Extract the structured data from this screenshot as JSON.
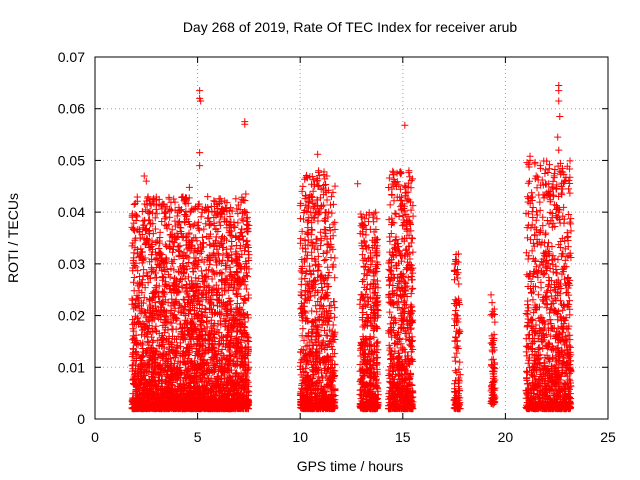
{
  "chart_data": {
    "type": "scatter",
    "title": "Day 268 of 2019, Rate Of TEC Index for receiver arub",
    "xlabel": "GPS time / hours",
    "ylabel": "ROTI / TECUs",
    "xlim": [
      0,
      25
    ],
    "ylim": [
      0,
      0.07
    ],
    "xticks": [
      0,
      5,
      10,
      15,
      20,
      25
    ],
    "xtick_labels": [
      "0",
      "5",
      "10",
      "15",
      "20",
      "25"
    ],
    "yticks": [
      0,
      0.01,
      0.02,
      0.03,
      0.04,
      0.05,
      0.06,
      0.07
    ],
    "ytick_labels": [
      "0",
      "0.01",
      "0.02",
      "0.03",
      "0.04",
      "0.05",
      "0.06",
      "0.07"
    ],
    "grid": true,
    "marker": "+",
    "marker_color": "#ff0000",
    "clusters": [
      {
        "x_start": 1.8,
        "x_end": 7.5,
        "y_min": 0.002,
        "y_max": 0.043,
        "density": 3400
      },
      {
        "x_start": 10.0,
        "x_end": 11.7,
        "y_min": 0.002,
        "y_max": 0.048,
        "density": 900
      },
      {
        "x_start": 12.9,
        "x_end": 13.8,
        "y_min": 0.002,
        "y_max": 0.04,
        "density": 500
      },
      {
        "x_start": 14.3,
        "x_end": 15.5,
        "y_min": 0.002,
        "y_max": 0.048,
        "density": 700
      },
      {
        "x_start": 17.5,
        "x_end": 17.8,
        "y_min": 0.002,
        "y_max": 0.032,
        "density": 120
      },
      {
        "x_start": 19.3,
        "x_end": 19.5,
        "y_min": 0.003,
        "y_max": 0.024,
        "density": 80
      },
      {
        "x_start": 21.0,
        "x_end": 23.2,
        "y_min": 0.002,
        "y_max": 0.05,
        "density": 1100
      }
    ],
    "outliers": [
      {
        "x": 5.1,
        "y": 0.0635
      },
      {
        "x": 5.1,
        "y": 0.062
      },
      {
        "x": 5.15,
        "y": 0.0615
      },
      {
        "x": 7.3,
        "y": 0.0575
      },
      {
        "x": 7.3,
        "y": 0.057
      },
      {
        "x": 5.1,
        "y": 0.0515
      },
      {
        "x": 5.1,
        "y": 0.049
      },
      {
        "x": 4.6,
        "y": 0.0448
      },
      {
        "x": 2.4,
        "y": 0.047
      },
      {
        "x": 2.5,
        "y": 0.046
      },
      {
        "x": 10.85,
        "y": 0.0512
      },
      {
        "x": 10.9,
        "y": 0.048
      },
      {
        "x": 11.3,
        "y": 0.047
      },
      {
        "x": 12.8,
        "y": 0.0455
      },
      {
        "x": 15.1,
        "y": 0.0568
      },
      {
        "x": 15.3,
        "y": 0.048
      },
      {
        "x": 22.6,
        "y": 0.0645
      },
      {
        "x": 22.6,
        "y": 0.0635
      },
      {
        "x": 22.6,
        "y": 0.0615
      },
      {
        "x": 22.65,
        "y": 0.0585
      },
      {
        "x": 22.55,
        "y": 0.0545
      },
      {
        "x": 22.6,
        "y": 0.052
      },
      {
        "x": 21.2,
        "y": 0.0508
      },
      {
        "x": 21.2,
        "y": 0.05
      },
      {
        "x": 21.7,
        "y": 0.049
      },
      {
        "x": 21.5,
        "y": 0.047
      },
      {
        "x": 7.35,
        "y": 0.0435
      },
      {
        "x": 17.6,
        "y": 0.0318
      },
      {
        "x": 17.6,
        "y": 0.0305
      },
      {
        "x": 19.3,
        "y": 0.024
      },
      {
        "x": 19.35,
        "y": 0.0225
      },
      {
        "x": 19.4,
        "y": 0.0028
      },
      {
        "x": 17.7,
        "y": 0.0025
      }
    ]
  }
}
